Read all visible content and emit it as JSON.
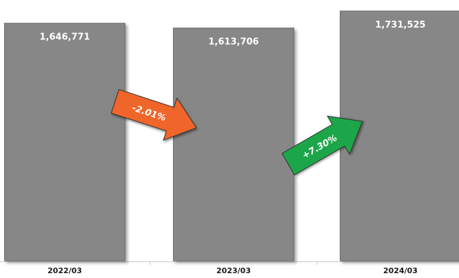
{
  "chart_data": {
    "type": "bar",
    "categories": [
      "2022/03",
      "2023/03",
      "2024/03"
    ],
    "values": [
      1646771,
      1613706,
      1731525
    ],
    "value_labels": [
      "1,646,771",
      "1,613,706",
      "1,731,525"
    ],
    "title": "",
    "xlabel": "",
    "ylabel": "",
    "ylim": [
      0,
      1760000
    ],
    "grid": false,
    "legend": "none",
    "bar_color": "#878787",
    "bar_edge_color": "#6e6e6e",
    "value_label_color": "#ffffff",
    "tick_label_color": "#1a1a1a",
    "annotations": [
      {
        "text": "-2.01%",
        "from_category": "2022/03",
        "to_category": "2023/03",
        "direction": "down",
        "color": "#f0652a"
      },
      {
        "text": "+7.30%",
        "from_category": "2023/03",
        "to_category": "2024/03",
        "direction": "up",
        "color": "#1ea64a"
      }
    ]
  }
}
